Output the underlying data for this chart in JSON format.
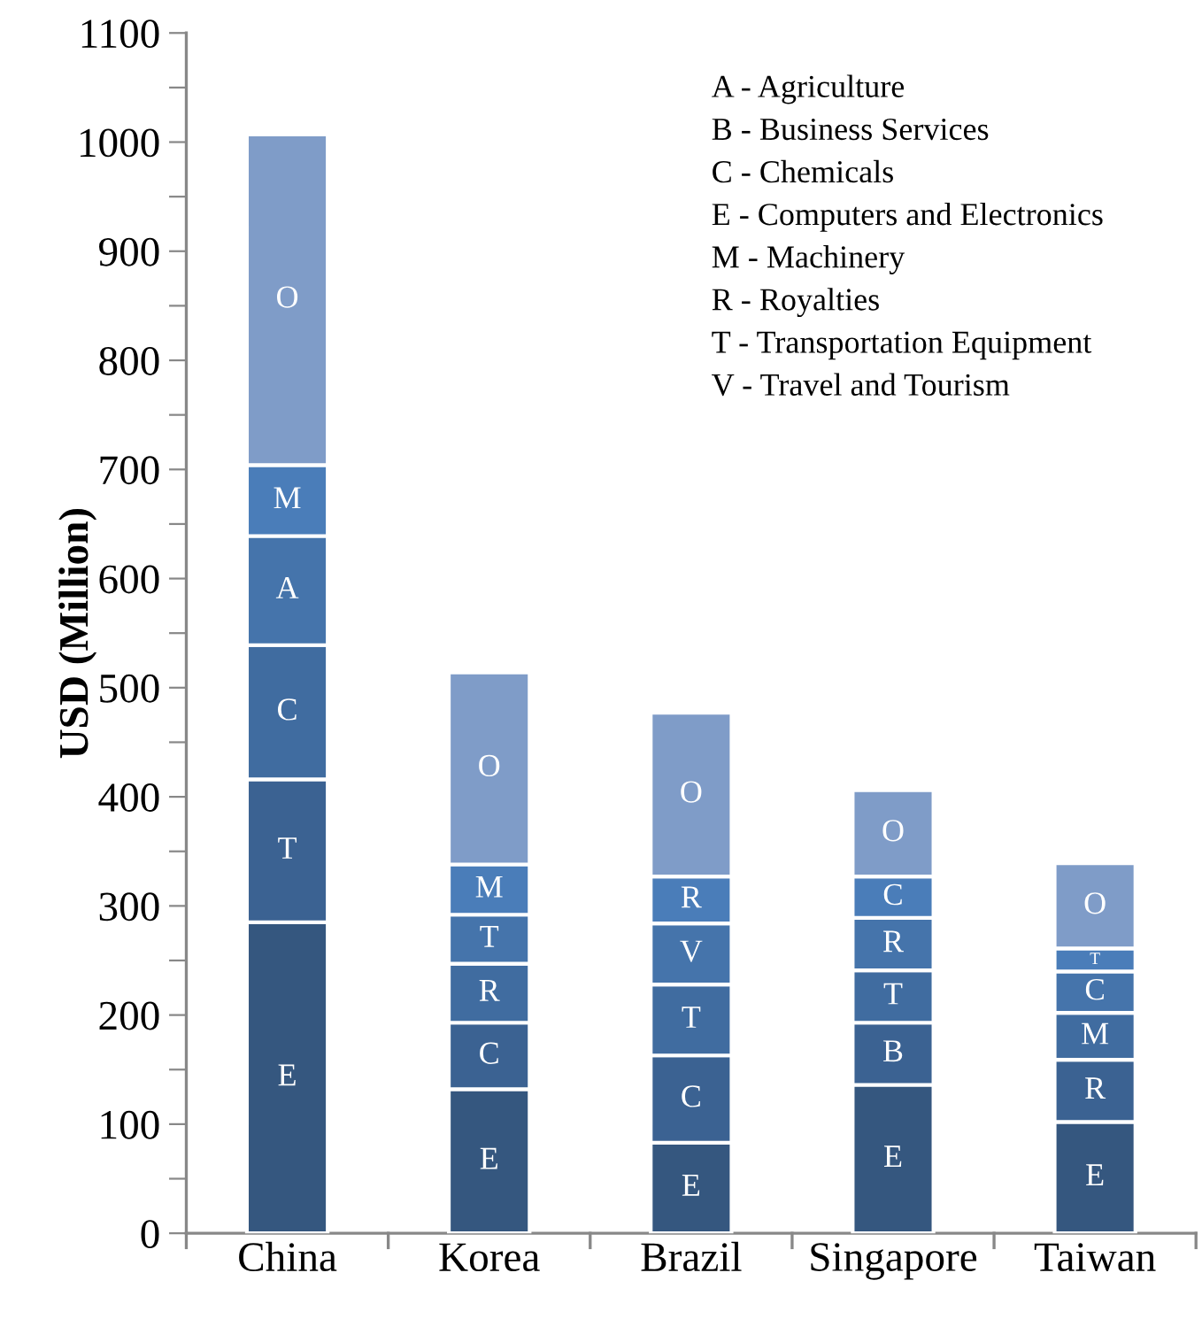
{
  "chart_data": {
    "type": "bar",
    "stacked": true,
    "ylabel": "USD (Million)",
    "categories": [
      "China",
      "Korea",
      "Brazil",
      "Singapore",
      "Taiwan"
    ],
    "series": [
      {
        "color": "#35577f",
        "values": [
          285,
          132,
          83,
          136,
          102
        ],
        "value_labels": [
          "E",
          "E",
          "E",
          "E",
          "E"
        ]
      },
      {
        "color": "#3b6292",
        "values": [
          131,
          61,
          80,
          57,
          57
        ],
        "value_labels": [
          "T",
          "C",
          "C",
          "B",
          "R"
        ]
      },
      {
        "color": "#406ca0",
        "values": [
          123,
          54,
          65,
          48,
          43
        ],
        "value_labels": [
          "C",
          "R",
          "T",
          "T",
          "M"
        ]
      },
      {
        "color": "#4574ab",
        "values": [
          100,
          45,
          56,
          48,
          38
        ],
        "value_labels": [
          "A",
          "T",
          "V",
          "R",
          "C"
        ]
      },
      {
        "color": "#4a7db9",
        "values": [
          65,
          46,
          43,
          38,
          21
        ],
        "value_labels": [
          "M",
          "M",
          "R",
          "C",
          "T"
        ]
      },
      {
        "color": "#7f9cc8",
        "values": [
          303,
          176,
          150,
          79,
          78
        ],
        "value_labels": [
          "O",
          "O",
          "O",
          "O",
          "O"
        ]
      }
    ],
    "ylim": [
      0,
      1100
    ],
    "yticks": [
      0,
      {
        "value": 50,
        "label": null
      },
      100,
      {
        "value": 150,
        "label": null
      },
      200,
      {
        "value": 250,
        "label": null
      },
      300,
      {
        "value": 350,
        "label": null
      },
      400,
      {
        "value": 450,
        "label": null
      },
      500,
      {
        "value": 550,
        "label": null
      },
      600,
      {
        "value": 650,
        "label": null
      },
      700,
      {
        "value": 750,
        "label": null
      },
      800,
      {
        "value": 850,
        "label": null
      },
      900,
      {
        "value": 950,
        "label": null
      },
      1000,
      {
        "value": 1050,
        "label": null
      },
      1100
    ],
    "grid": false,
    "legend": false,
    "annotations": [
      "A - Agriculture",
      "B - Business Services",
      "C - Chemicals",
      "E - Computers and Electronics",
      "M - Machinery",
      "R - Royalties",
      "T - Transportation Equipment",
      "V - Travel and Tourism"
    ]
  }
}
